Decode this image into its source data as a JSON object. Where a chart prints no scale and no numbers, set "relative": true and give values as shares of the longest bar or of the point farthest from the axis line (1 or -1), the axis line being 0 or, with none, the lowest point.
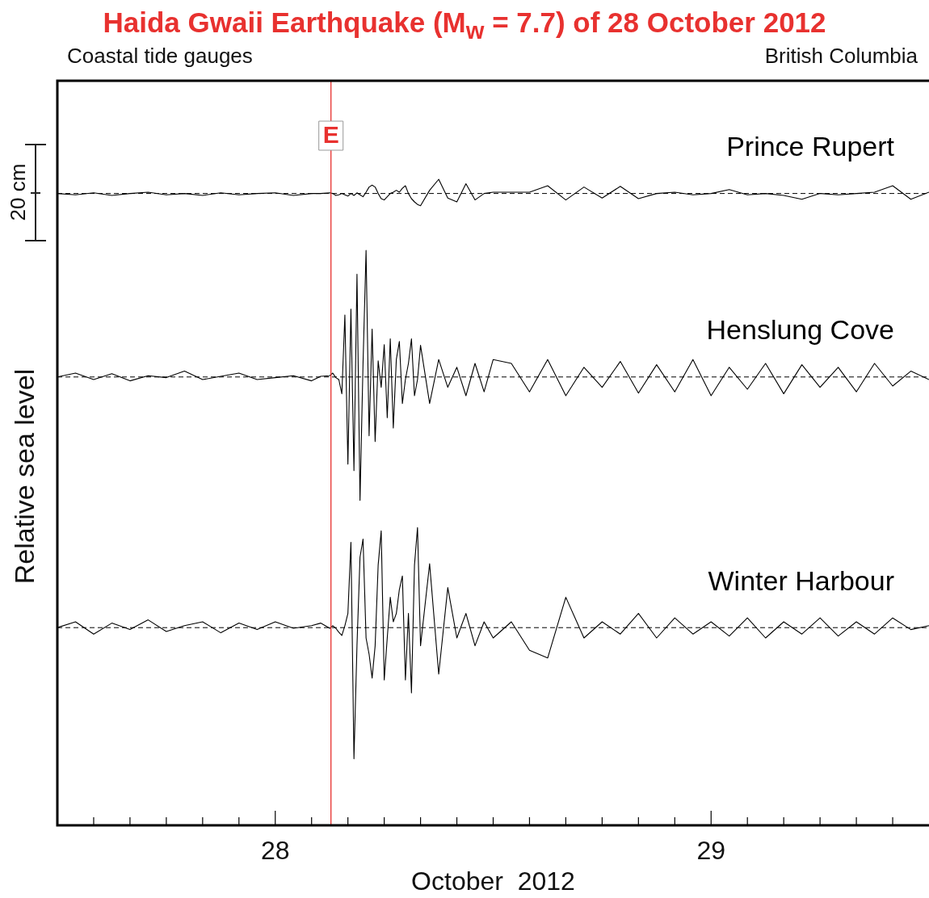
{
  "chart_data": {
    "type": "line",
    "title": "Haida Gwaii  Earthquake  (M$_{w}$ = 7.7) of 28 October 2012",
    "subtitle": "Coastal tide gauges",
    "xlabel": "October  2012",
    "ylabel": "Relative sea  level",
    "annotations": [
      "British Columbia",
      "20 cm"
    ],
    "relative": true,
    "xlim": [
      "2012-10-27T12:00",
      "2012-10-29T12:00"
    ],
    "xticks": [
      {
        "value": "2012-10-27T14:00",
        "label": null
      },
      {
        "value": "2012-10-27T16:00",
        "label": null
      },
      {
        "value": "2012-10-27T18:00",
        "label": null
      },
      {
        "value": "2012-10-27T20:00",
        "label": null
      },
      {
        "value": "2012-10-27T22:00",
        "label": null
      },
      {
        "value": "2012-10-28T00:00",
        "label": "28"
      },
      {
        "value": "2012-10-28T02:00",
        "label": null
      },
      {
        "value": "2012-10-28T04:00",
        "label": null
      },
      {
        "value": "2012-10-28T06:00",
        "label": null
      },
      {
        "value": "2012-10-28T08:00",
        "label": null
      },
      {
        "value": "2012-10-28T10:00",
        "label": null
      },
      {
        "value": "2012-10-28T12:00",
        "label": null
      },
      {
        "value": "2012-10-28T14:00",
        "label": null
      },
      {
        "value": "2012-10-28T16:00",
        "label": null
      },
      {
        "value": "2012-10-28T18:00",
        "label": null
      },
      {
        "value": "2012-10-28T20:00",
        "label": null
      },
      {
        "value": "2012-10-28T22:00",
        "label": null
      },
      {
        "value": "2012-10-29T00:00",
        "label": "29"
      },
      {
        "value": "2012-10-29T02:00",
        "label": null
      },
      {
        "value": "2012-10-29T04:00",
        "label": null
      },
      {
        "value": "2012-10-29T06:00",
        "label": null
      },
      {
        "value": "2012-10-29T08:00",
        "label": null
      },
      {
        "value": "2012-10-29T10:00",
        "label": null
      }
    ],
    "x": [
      "2012-10-27T12:00",
      "2012-10-27T13:00",
      "2012-10-27T14:00",
      "2012-10-27T15:00",
      "2012-10-27T16:00",
      "2012-10-27T17:00",
      "2012-10-27T18:00",
      "2012-10-27T19:00",
      "2012-10-27T20:00",
      "2012-10-27T21:00",
      "2012-10-27T22:00",
      "2012-10-27T23:00",
      "2012-10-28T00:00",
      "2012-10-28T01:00",
      "2012-10-28T02:00",
      "2012-10-28T02:30",
      "2012-10-28T03:00",
      "2012-10-28T03:10",
      "2012-10-28T03:20",
      "2012-10-28T03:30",
      "2012-10-28T03:40",
      "2012-10-28T03:50",
      "2012-10-28T04:00",
      "2012-10-28T04:10",
      "2012-10-28T04:20",
      "2012-10-28T04:30",
      "2012-10-28T04:40",
      "2012-10-28T04:50",
      "2012-10-28T05:00",
      "2012-10-28T05:10",
      "2012-10-28T05:20",
      "2012-10-28T05:30",
      "2012-10-28T05:40",
      "2012-10-28T05:50",
      "2012-10-28T06:00",
      "2012-10-28T06:10",
      "2012-10-28T06:20",
      "2012-10-28T06:30",
      "2012-10-28T06:40",
      "2012-10-28T06:50",
      "2012-10-28T07:00",
      "2012-10-28T07:10",
      "2012-10-28T07:20",
      "2012-10-28T07:30",
      "2012-10-28T07:40",
      "2012-10-28T07:50",
      "2012-10-28T08:00",
      "2012-10-28T08:30",
      "2012-10-28T09:00",
      "2012-10-28T09:30",
      "2012-10-28T10:00",
      "2012-10-28T10:30",
      "2012-10-28T11:00",
      "2012-10-28T11:30",
      "2012-10-28T12:00",
      "2012-10-28T13:00",
      "2012-10-28T14:00",
      "2012-10-28T15:00",
      "2012-10-28T16:00",
      "2012-10-28T17:00",
      "2012-10-28T18:00",
      "2012-10-28T19:00",
      "2012-10-28T20:00",
      "2012-10-28T21:00",
      "2012-10-28T22:00",
      "2012-10-28T23:00",
      "2012-10-29T00:00",
      "2012-10-29T01:00",
      "2012-10-29T02:00",
      "2012-10-29T03:00",
      "2012-10-29T04:00",
      "2012-10-29T05:00",
      "2012-10-29T06:00",
      "2012-10-29T07:00",
      "2012-10-29T08:00",
      "2012-10-29T09:00",
      "2012-10-29T10:00",
      "2012-10-29T11:00",
      "2012-10-29T12:00"
    ],
    "series": [
      {
        "name": "Prince Rupert",
        "color": "#000000",
        "values": [
          0.978,
          0.976,
          0.979,
          0.975,
          0.978,
          0.98,
          0.976,
          0.978,
          0.975,
          0.979,
          0.976,
          0.978,
          0.979,
          0.975,
          0.978,
          0.978,
          0.979,
          0.978,
          0.975,
          0.976,
          0.978,
          0.976,
          0.974,
          0.978,
          0.975,
          0.979,
          0.976,
          0.973,
          0.98,
          0.988,
          0.991,
          0.988,
          0.978,
          0.97,
          0.968,
          0.973,
          0.978,
          0.98,
          0.983,
          0.98,
          0.986,
          0.99,
          0.978,
          0.97,
          0.965,
          0.961,
          0.959,
          0.983,
          1,
          0.971,
          0.965,
          0.993,
          0.968,
          0.978,
          0.98,
          0.98,
          0.98,
          0.99,
          0.968,
          0.988,
          0.971,
          0.989,
          0.97,
          0.978,
          0.98,
          0.976,
          0.978,
          0.984,
          0.976,
          0.978,
          0.975,
          0.969,
          0.978,
          0.976,
          0.978,
          0.98,
          0.99,
          0.969,
          0.98
        ]
      },
      {
        "name": "Henslung Cove",
        "color": "#000000",
        "values": [
          0.694,
          0.7,
          0.69,
          0.699,
          0.688,
          0.696,
          0.693,
          0.703,
          0.69,
          0.695,
          0.7,
          0.69,
          0.693,
          0.696,
          0.688,
          0.695,
          0.696,
          0.7,
          0.693,
          0.69,
          0.668,
          0.79,
          0.559,
          0.799,
          0.549,
          0.853,
          0.503,
          0.715,
          0.89,
          0.603,
          0.768,
          0.594,
          0.719,
          0.678,
          0.744,
          0.631,
          0.753,
          0.615,
          0.721,
          0.749,
          0.653,
          0.69,
          0.715,
          0.753,
          0.665,
          0.69,
          0.743,
          0.653,
          0.721,
          0.678,
          0.709,
          0.665,
          0.715,
          0.671,
          0.721,
          0.715,
          0.671,
          0.721,
          0.665,
          0.709,
          0.678,
          0.718,
          0.669,
          0.713,
          0.671,
          0.721,
          0.665,
          0.709,
          0.675,
          0.715,
          0.668,
          0.713,
          0.678,
          0.709,
          0.671,
          0.715,
          0.68,
          0.703,
          0.69
        ]
      },
      {
        "name": "Winter Harbour",
        "color": "#000000",
        "values": [
          0.306,
          0.315,
          0.296,
          0.313,
          0.303,
          0.318,
          0.3,
          0.309,
          0.315,
          0.298,
          0.313,
          0.303,
          0.315,
          0.305,
          0.309,
          0.313,
          0.305,
          0.309,
          0.305,
          0.299,
          0.294,
          0.309,
          0.328,
          0.438,
          0.103,
          0.278,
          0.415,
          0.443,
          0.29,
          0.265,
          0.228,
          0.278,
          0.403,
          0.456,
          0.225,
          0.29,
          0.353,
          0.315,
          0.328,
          0.365,
          0.386,
          0.225,
          0.328,
          0.205,
          0.403,
          0.461,
          0.278,
          0.405,
          0.234,
          0.368,
          0.29,
          0.328,
          0.278,
          0.315,
          0.29,
          0.315,
          0.271,
          0.259,
          0.353,
          0.29,
          0.315,
          0.296,
          0.328,
          0.29,
          0.321,
          0.296,
          0.315,
          0.293,
          0.321,
          0.29,
          0.315,
          0.296,
          0.321,
          0.293,
          0.315,
          0.296,
          0.321,
          0.303,
          0.309
        ]
      }
    ],
    "ref_lines": [
      {
        "axis": "y",
        "value": 0.978,
        "color": "#000000",
        "line_style": "dashed"
      },
      {
        "axis": "y",
        "value": 0.694,
        "color": "#000000",
        "line_style": "dashed"
      },
      {
        "axis": "y",
        "value": 0.306,
        "color": "#000000",
        "line_style": "dashed"
      },
      {
        "axis": "x",
        "value": "2012-10-28T03:04",
        "label": "E",
        "color": "#e8312f",
        "line_style": "solid"
      }
    ]
  }
}
